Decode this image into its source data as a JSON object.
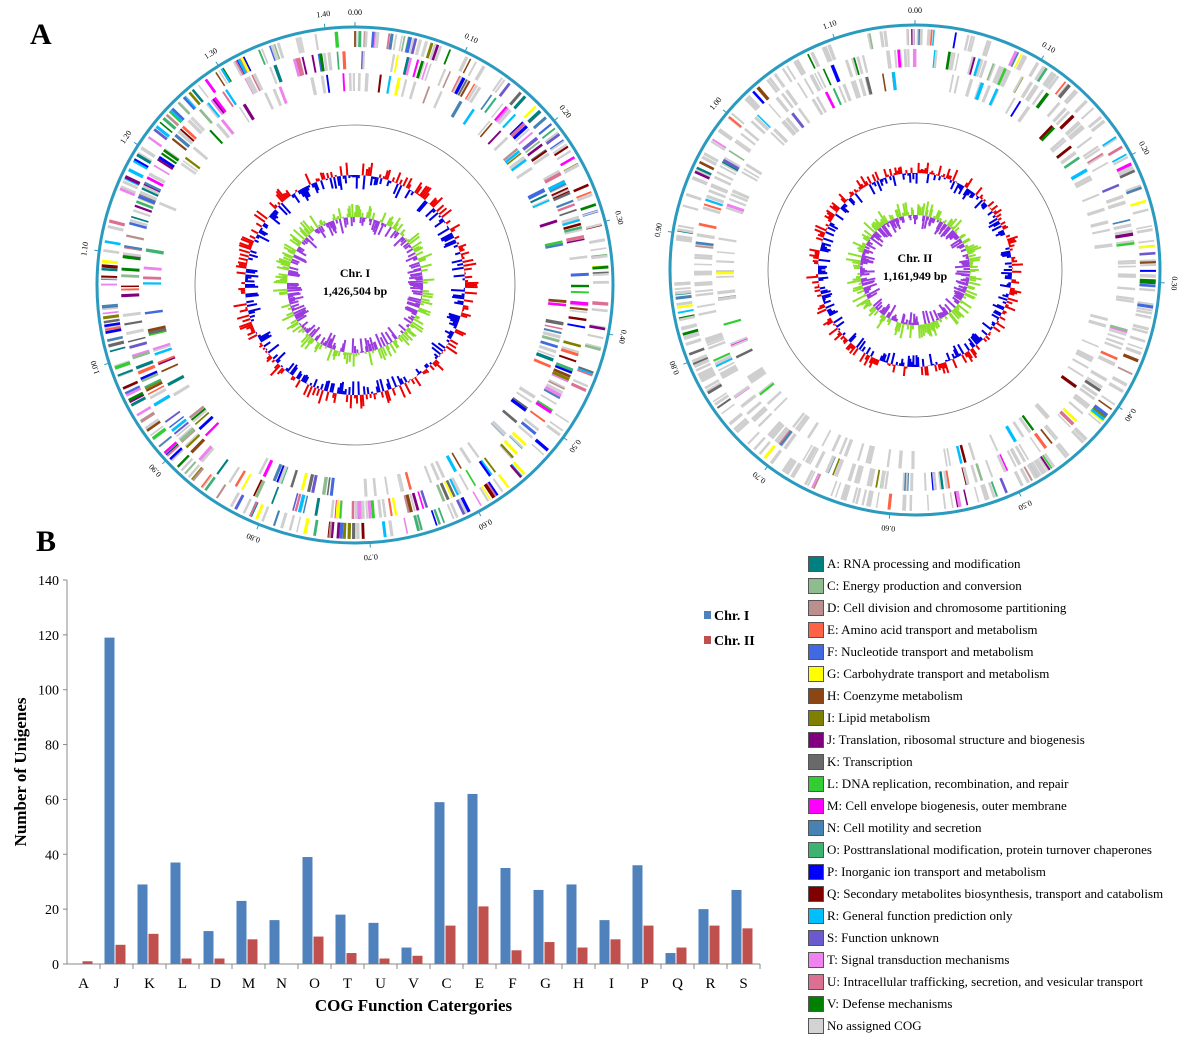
{
  "panels": {
    "a": "A",
    "b": "B"
  },
  "circos": [
    {
      "name": "Chr. I",
      "size": "1,426,504 bp",
      "ticks": [
        "0.00",
        "0.10",
        "0.20",
        "0.30",
        "0.40",
        "0.50",
        "0.60",
        "0.70",
        "0.80",
        "0.90",
        "1.00",
        "1.10",
        "1.20",
        "1.30",
        "1.40"
      ],
      "length_mb": 1.4265
    },
    {
      "name": "Chr. II",
      "size": "1,161,949 bp",
      "ticks": [
        "0.00",
        "0.10",
        "0.20",
        "0.30",
        "0.40",
        "0.50",
        "0.60",
        "0.70",
        "0.80",
        "0.90",
        "1.00",
        "1.10"
      ],
      "length_mb": 1.1619
    }
  ],
  "chart_data": {
    "type": "bar",
    "title": "",
    "xlabel": "COG Function Catergories",
    "ylabel": "Number of Unigenes",
    "ylim": [
      0,
      140
    ],
    "yticks": [
      0,
      20,
      40,
      60,
      80,
      100,
      120,
      140
    ],
    "categories": [
      "A",
      "J",
      "K",
      "L",
      "D",
      "M",
      "N",
      "O",
      "T",
      "U",
      "V",
      "C",
      "E",
      "F",
      "G",
      "H",
      "I",
      "P",
      "Q",
      "R",
      "S"
    ],
    "series": [
      {
        "name": "Chr. I",
        "color": "#4f81bd",
        "values": [
          0,
          119,
          29,
          37,
          12,
          23,
          16,
          39,
          18,
          15,
          6,
          59,
          62,
          35,
          27,
          29,
          16,
          36,
          4,
          20,
          27
        ]
      },
      {
        "name": "Chr. II",
        "color": "#c0504d",
        "values": [
          1,
          7,
          11,
          2,
          2,
          9,
          0,
          10,
          4,
          2,
          3,
          14,
          21,
          5,
          8,
          6,
          9,
          14,
          6,
          14,
          13
        ]
      }
    ],
    "legend_placement": "top-right"
  },
  "cog_legend": [
    {
      "label": "A: RNA processing and modification",
      "color": "#008080"
    },
    {
      "label": "C: Energy production and conversion",
      "color": "#8fbc8f"
    },
    {
      "label": "D: Cell division and chromosome partitioning",
      "color": "#bc8f8f"
    },
    {
      "label": "E: Amino acid transport and metabolism",
      "color": "#ff6347"
    },
    {
      "label": "F: Nucleotide transport and metabolism",
      "color": "#4169e1"
    },
    {
      "label": "G: Carbohydrate transport and metabolism",
      "color": "#ffff00"
    },
    {
      "label": "H: Coenzyme metabolism",
      "color": "#8b4513"
    },
    {
      "label": "I: Lipid metabolism",
      "color": "#808000"
    },
    {
      "label": "J: Translation, ribosomal structure and biogenesis",
      "color": "#800080"
    },
    {
      "label": "K: Transcription",
      "color": "#696969"
    },
    {
      "label": "L: DNA replication, recombination, and repair",
      "color": "#32cd32"
    },
    {
      "label": "M: Cell envelope biogenesis, outer membrane",
      "color": "#ff00ff"
    },
    {
      "label": "N: Cell motility and secretion",
      "color": "#4682b4"
    },
    {
      "label": "O: Posttranslational modification, protein turnover chaperones",
      "color": "#3cb371"
    },
    {
      "label": "P: Inorganic ion transport and metabolism",
      "color": "#0000ff"
    },
    {
      "label": "Q: Secondary metabolites biosynthesis, transport and catabolism",
      "color": "#800000"
    },
    {
      "label": "R: General function prediction only",
      "color": "#00bfff"
    },
    {
      "label": "S: Function unknown",
      "color": "#6a5acd"
    },
    {
      "label": "T: Signal transduction mechanisms",
      "color": "#ee82ee"
    },
    {
      "label": "U: Intracellular trafficking, secretion, and vesicular transport",
      "color": "#db7093"
    },
    {
      "label": "V: Defense mechanisms",
      "color": "#008000"
    },
    {
      "label": "No assigned COG",
      "color": "#d3d3d3"
    }
  ]
}
